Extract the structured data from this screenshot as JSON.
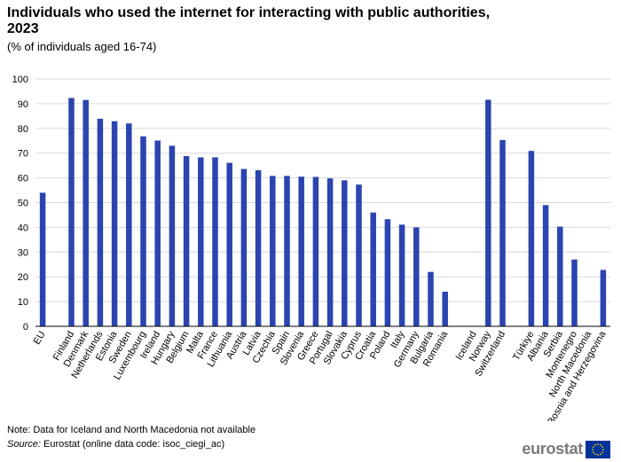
{
  "header": {
    "title": "Individuals who used the internet for interacting with public authorities, 2023",
    "subtitle": "(% of individuals aged 16-74)"
  },
  "footer": {
    "note": "Note: Data for Iceland and North Macedonia not available",
    "source_label": "Source:",
    "source_text": "Eurostat (online data code: isoc_ciegi_ac)",
    "logo_text": "eurostat"
  },
  "colors": {
    "bar": "#2b44b0",
    "grid": "#d9d9d9",
    "axis": "#000000"
  },
  "chart_data": {
    "type": "bar",
    "title": "Individuals who used the internet for interacting with public authorities, 2023",
    "subtitle": "(% of individuals aged 16-74)",
    "ylim": [
      0,
      100
    ],
    "yticks": [
      0,
      10,
      20,
      30,
      40,
      50,
      60,
      70,
      80,
      90,
      100
    ],
    "grid": true,
    "categories": [
      "EU",
      "",
      "Finland",
      "Denmark",
      "Netherlands",
      "Estonia",
      "Sweden",
      "Luxembourg",
      "Ireland",
      "Hungary",
      "Belgium",
      "Malta",
      "France",
      "Lithuania",
      "Austria",
      "Latvia",
      "Czechia",
      "Spain",
      "Slovenia",
      "Greece",
      "Portugal",
      "Slovakia",
      "Cyprus",
      "Croatia",
      "Poland",
      "Italy",
      "Germany",
      "Bulgaria",
      "Romania",
      "",
      "Iceland",
      "Norway",
      "Switzerland",
      "",
      "Türkiye",
      "Albania",
      "Serbia",
      "Montenegro",
      "North Macedonia",
      "Bosnia and Herzegovina"
    ],
    "values": [
      54,
      null,
      92.3,
      91.5,
      83.9,
      82.9,
      82,
      76.8,
      75.1,
      73,
      68.8,
      68.3,
      68.3,
      66.1,
      63.6,
      63.1,
      60.8,
      60.8,
      60.5,
      60.4,
      59.8,
      59,
      57.3,
      46,
      43.3,
      41.1,
      40,
      22,
      14,
      null,
      null,
      91.6,
      75.3,
      null,
      70.9,
      49,
      40.3,
      27,
      null,
      22.8
    ]
  }
}
